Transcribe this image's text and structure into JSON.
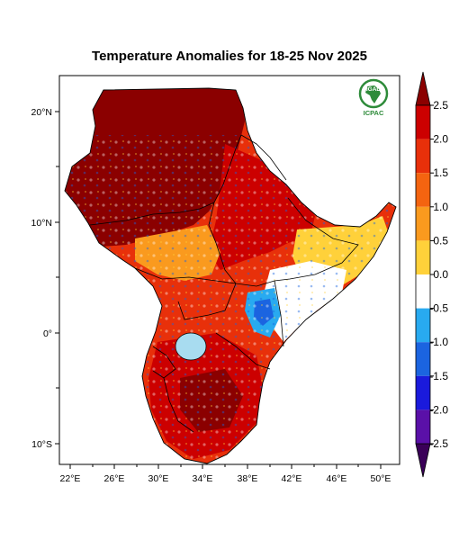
{
  "title": "Temperature Anomalies for 18-25 Nov 2025",
  "logo": {
    "org_top": "IGAD",
    "org_bottom": "ICPAC",
    "color": "#2e8b3a"
  },
  "map": {
    "lon_ticks": [
      "22°E",
      "26°E",
      "30°E",
      "34°E",
      "38°E",
      "42°E",
      "46°E",
      "50°E"
    ],
    "lat_ticks": [
      "20°N",
      "10°N",
      "0°",
      "10°S"
    ]
  },
  "colorbar": {
    "labels": [
      "2.5",
      "2.0",
      "1.5",
      "1.0",
      "0.5",
      "0.0",
      "-0.5",
      "-1.0",
      "-1.5",
      "-2.0",
      "-2.5"
    ],
    "colors": [
      "#cc0000",
      "#e8300a",
      "#f46410",
      "#fa9a1e",
      "#ffd13a",
      "#ffffff",
      "#28aaf0",
      "#1b64e0",
      "#1a1adc",
      "#5a10a8"
    ],
    "over_color": "#8b0000",
    "under_color": "#3a0058"
  },
  "palette": {
    "darkred": "#8b0000",
    "red": "#cc0000",
    "orange_red": "#e8300a",
    "orange": "#f46410",
    "light_orange": "#fa9a1e",
    "yellow": "#ffd13a",
    "white": "#ffffff",
    "light_blue": "#28aaf0",
    "blue": "#1b64e0",
    "lake": "#a8dcf0"
  }
}
